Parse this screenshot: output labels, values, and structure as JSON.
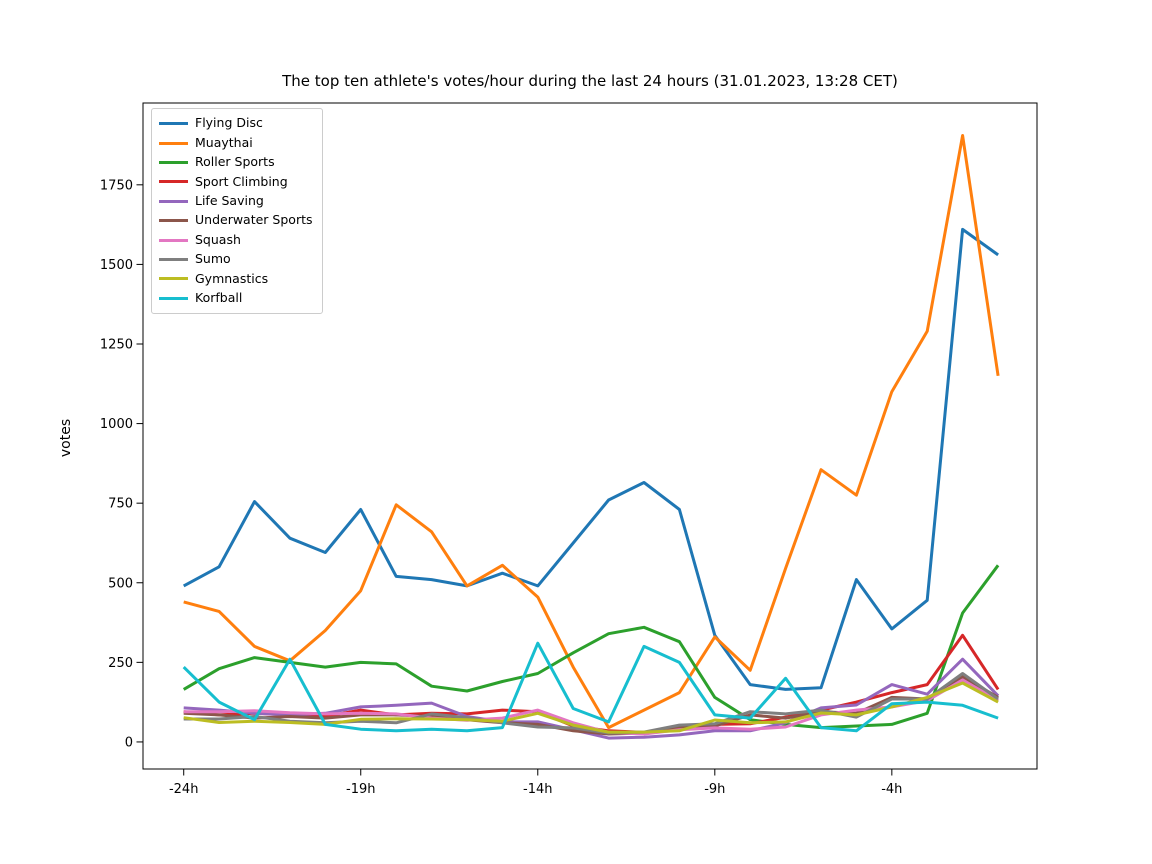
{
  "figure": {
    "background_color": "#ffffff",
    "axes_edge_color": "#000000",
    "text_color": "#000000"
  },
  "chart_data": {
    "type": "line",
    "title": "The top ten athlete's votes/hour during the last 24 hours (31.01.2023, 13:28 CET)",
    "xlabel": "",
    "ylabel": "votes",
    "legend_position": "upper left",
    "grid": false,
    "x_hours": [
      -24,
      -23,
      -22,
      -21,
      -20,
      -19,
      -18,
      -17,
      -16,
      -15,
      -14,
      -13,
      -12,
      -11,
      -10,
      -9,
      -8,
      -7,
      -6,
      -5,
      -4,
      -3,
      -2,
      -1
    ],
    "xtick_hours": [
      -24,
      -19,
      -14,
      -9,
      -4
    ],
    "xtick_labels": [
      "-24h",
      "-19h",
      "-14h",
      "-9h",
      "-4h"
    ],
    "ytick_values": [
      0,
      250,
      500,
      750,
      1000,
      1250,
      1500,
      1750
    ],
    "ytick_labels": [
      "0",
      "250",
      "500",
      "750",
      "1000",
      "1250",
      "1500",
      "1750"
    ],
    "xlim": [
      -25.15,
      0.1
    ],
    "ylim": [
      -85,
      2007
    ],
    "series": [
      {
        "name": "Flying Disc",
        "color": "#1f77b4",
        "values": [
          490,
          550,
          755,
          640,
          595,
          730,
          520,
          510,
          490,
          530,
          490,
          625,
          760,
          815,
          730,
          335,
          180,
          165,
          170,
          510,
          355,
          445,
          1610,
          1530
        ]
      },
      {
        "name": "Muaythai",
        "color": "#ff7f0e",
        "values": [
          440,
          410,
          300,
          255,
          350,
          475,
          745,
          660,
          490,
          555,
          455,
          235,
          45,
          100,
          155,
          330,
          225,
          545,
          855,
          775,
          1100,
          1290,
          1905,
          1150
        ]
      },
      {
        "name": "Roller Sports",
        "color": "#2ca02c",
        "values": [
          165,
          230,
          265,
          250,
          235,
          250,
          245,
          175,
          160,
          190,
          215,
          280,
          340,
          360,
          315,
          140,
          70,
          55,
          45,
          50,
          55,
          90,
          405,
          555
        ]
      },
      {
        "name": "Sport Climbing",
        "color": "#d62728",
        "values": [
          95,
          85,
          90,
          85,
          80,
          100,
          85,
          90,
          88,
          100,
          95,
          50,
          35,
          30,
          45,
          55,
          57,
          78,
          100,
          125,
          155,
          180,
          335,
          165
        ]
      },
      {
        "name": "Life Saving",
        "color": "#9467bd",
        "values": [
          107,
          100,
          90,
          85,
          90,
          110,
          115,
          122,
          80,
          63,
          63,
          38,
          12,
          15,
          22,
          35,
          35,
          60,
          107,
          116,
          180,
          150,
          260,
          145
        ]
      },
      {
        "name": "Underwater Sports",
        "color": "#8c564b",
        "values": [
          90,
          85,
          75,
          80,
          75,
          85,
          85,
          80,
          70,
          60,
          55,
          35,
          25,
          28,
          45,
          50,
          85,
          75,
          95,
          90,
          140,
          135,
          205,
          140
        ]
      },
      {
        "name": "Squash",
        "color": "#e377c2",
        "values": [
          95,
          95,
          98,
          92,
          88,
          90,
          88,
          75,
          68,
          75,
          100,
          60,
          30,
          25,
          38,
          44,
          40,
          47,
          85,
          100,
          110,
          130,
          195,
          130
        ]
      },
      {
        "name": "Sumo",
        "color": "#7f7f7f",
        "values": [
          72,
          72,
          80,
          65,
          60,
          65,
          60,
          88,
          76,
          60,
          47,
          44,
          28,
          31,
          53,
          57,
          95,
          88,
          100,
          78,
          135,
          135,
          215,
          135
        ]
      },
      {
        "name": "Gymnastics",
        "color": "#bcbd22",
        "values": [
          76,
          61,
          65,
          61,
          55,
          71,
          73,
          72,
          70,
          65,
          90,
          53,
          31,
          31,
          35,
          69,
          60,
          63,
          91,
          85,
          110,
          140,
          185,
          125
        ]
      },
      {
        "name": "Korfball",
        "color": "#17becf",
        "values": [
          235,
          125,
          70,
          260,
          55,
          40,
          35,
          40,
          35,
          45,
          310,
          105,
          63,
          300,
          250,
          85,
          75,
          200,
          45,
          35,
          120,
          125,
          115,
          75
        ]
      }
    ]
  }
}
